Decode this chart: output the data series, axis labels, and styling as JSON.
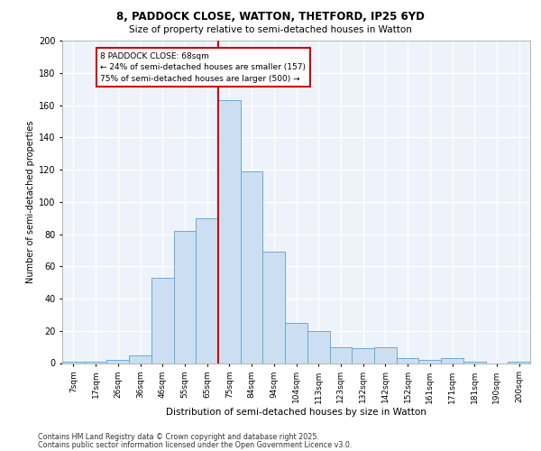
{
  "title1": "8, PADDOCK CLOSE, WATTON, THETFORD, IP25 6YD",
  "title2": "Size of property relative to semi-detached houses in Watton",
  "xlabel": "Distribution of semi-detached houses by size in Watton",
  "ylabel": "Number of semi-detached properties",
  "categories": [
    "7sqm",
    "17sqm",
    "26sqm",
    "36sqm",
    "46sqm",
    "55sqm",
    "65sqm",
    "75sqm",
    "84sqm",
    "94sqm",
    "104sqm",
    "113sqm",
    "123sqm",
    "132sqm",
    "142sqm",
    "152sqm",
    "161sqm",
    "171sqm",
    "181sqm",
    "190sqm",
    "200sqm"
  ],
  "values": [
    1,
    1,
    2,
    5,
    53,
    82,
    90,
    163,
    119,
    69,
    25,
    20,
    10,
    9,
    10,
    3,
    2,
    3,
    1,
    0,
    1
  ],
  "bar_color": "#ccdff2",
  "bar_edge_color": "#6aaad4",
  "vline_x": 6.5,
  "vline_color": "#cc0000",
  "annotation_title": "8 PADDOCK CLOSE: 68sqm",
  "annotation_line1": "← 24% of semi-detached houses are smaller (157)",
  "annotation_line2": "75% of semi-detached houses are larger (500) →",
  "annotation_box_color": "#ffffff",
  "annotation_box_edge": "#cc0000",
  "ylim": [
    0,
    200
  ],
  "yticks": [
    0,
    20,
    40,
    60,
    80,
    100,
    120,
    140,
    160,
    180,
    200
  ],
  "footer1": "Contains HM Land Registry data © Crown copyright and database right 2025.",
  "footer2": "Contains public sector information licensed under the Open Government Licence v3.0.",
  "bg_color": "#edf2fb",
  "grid_color": "#ffffff"
}
